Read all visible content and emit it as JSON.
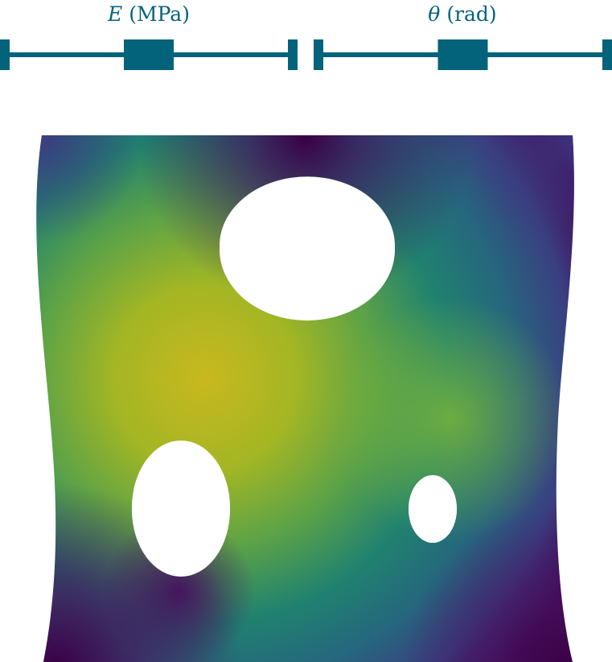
{
  "sliders": [
    {
      "symbol": "E",
      "unit": "(MPa)",
      "value_fraction": 0.5
    },
    {
      "symbol": "θ",
      "unit": "(rad)",
      "value_fraction": 0.5
    }
  ],
  "colors": {
    "slider": "#03637a",
    "background": "#ffffff",
    "colormap": "viridis",
    "viridis_stops": [
      "#440154",
      "#3b528b",
      "#21918c",
      "#5ec962",
      "#c9b81e"
    ]
  }
}
